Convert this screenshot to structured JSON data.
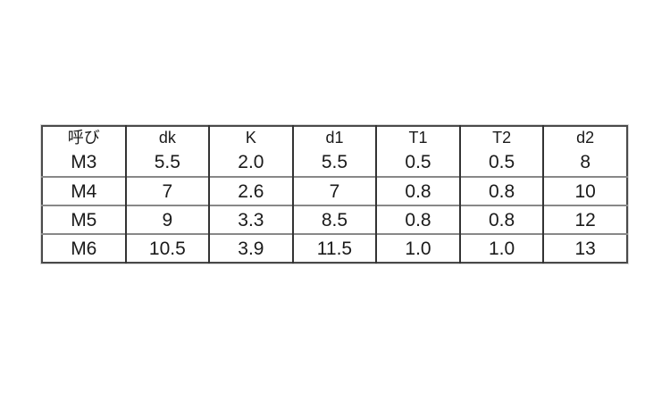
{
  "page": {
    "background": "#ffffff",
    "text_color": "#1a1a1a",
    "outer_border_color": "#4a4a4a",
    "vertical_divider_color": "#333333",
    "horizontal_divider_color": "#888888"
  },
  "chart_data": {
    "type": "table",
    "title": "",
    "columns": [
      "呼び",
      "dk",
      "K",
      "d1",
      "T1",
      "T2",
      "d2"
    ],
    "rows": [
      [
        "M3",
        "5.5",
        "2.0",
        "5.5",
        "0.5",
        "0.5",
        "8"
      ],
      [
        "M4",
        "7",
        "2.6",
        "7",
        "0.8",
        "0.8",
        "10"
      ],
      [
        "M5",
        "9",
        "3.3",
        "8.5",
        "0.8",
        "0.8",
        "12"
      ],
      [
        "M6",
        "10.5",
        "3.9",
        "11.5",
        "1.0",
        "1.0",
        "13"
      ]
    ],
    "layout": {
      "grid": true,
      "columns_equal_width": true,
      "header_row": true
    }
  }
}
